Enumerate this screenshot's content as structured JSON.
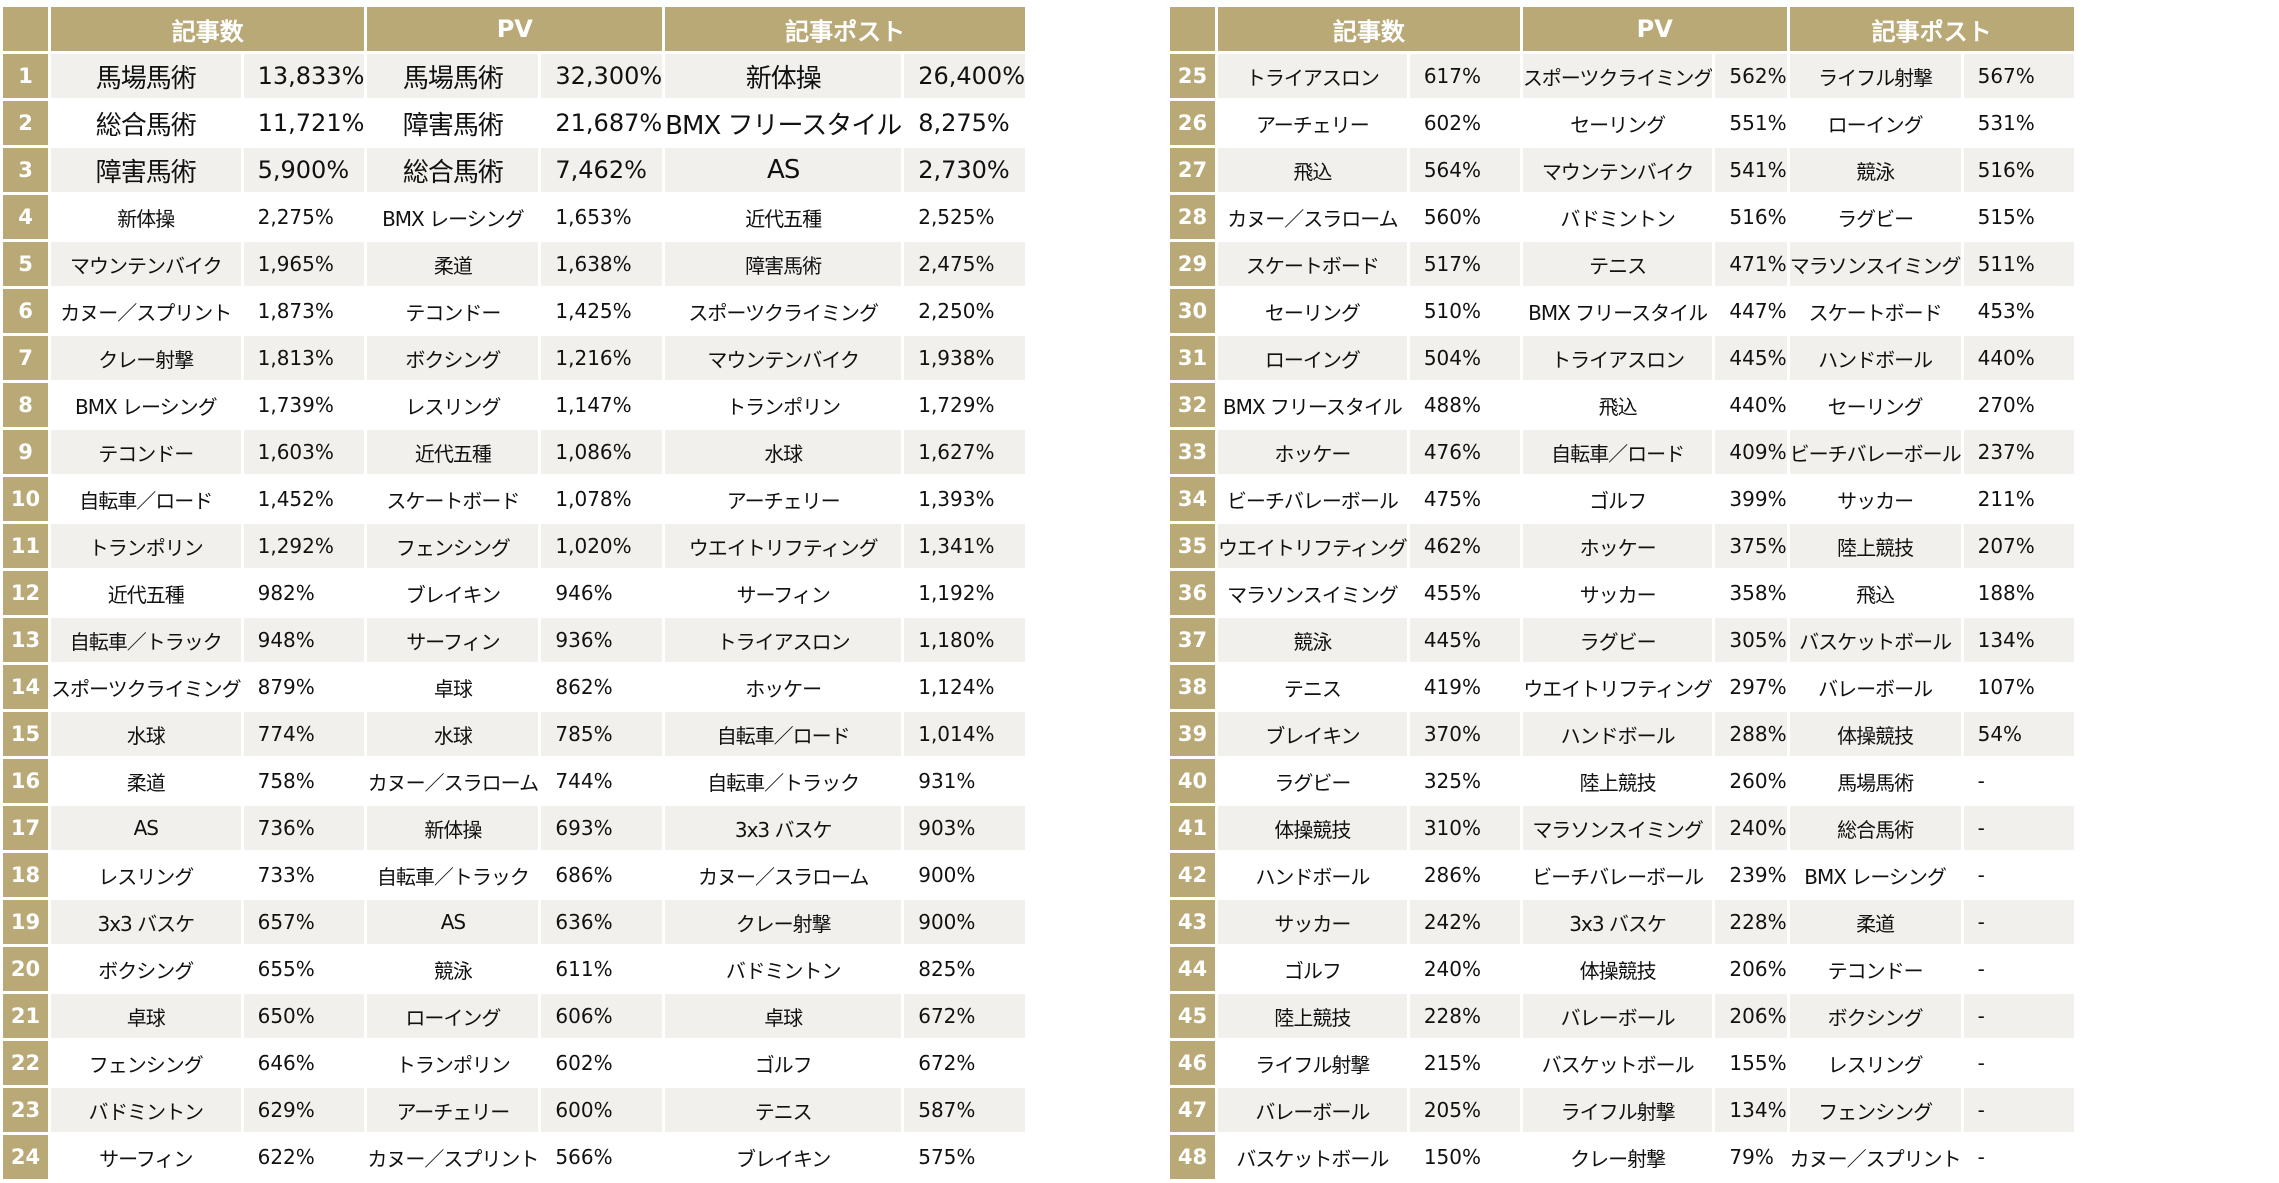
{
  "headers": [
    "記事数",
    "PV",
    "記事ポスト"
  ],
  "rows": [
    {
      "rank": "1",
      "articles": [
        "馬場馬術",
        "13,833%"
      ],
      "pv": [
        "馬場馬術",
        "32,300%"
      ],
      "posts": [
        "新体操",
        "26,400%"
      ]
    },
    {
      "rank": "2",
      "articles": [
        "総合馬術",
        "11,721%"
      ],
      "pv": [
        "障害馬術",
        "21,687%"
      ],
      "posts": [
        "BMX フリースタイル",
        "8,275%"
      ]
    },
    {
      "rank": "3",
      "articles": [
        "障害馬術",
        "5,900%"
      ],
      "pv": [
        "総合馬術",
        "7,462%"
      ],
      "posts": [
        "AS",
        "2,730%"
      ]
    },
    {
      "rank": "4",
      "articles": [
        "新体操",
        "2,275%"
      ],
      "pv": [
        "BMX レーシング",
        "1,653%"
      ],
      "posts": [
        "近代五種",
        "2,525%"
      ]
    },
    {
      "rank": "5",
      "articles": [
        "マウンテンバイク",
        "1,965%"
      ],
      "pv": [
        "柔道",
        "1,638%"
      ],
      "posts": [
        "障害馬術",
        "2,475%"
      ]
    },
    {
      "rank": "6",
      "articles": [
        "カヌー／スプリント",
        "1,873%"
      ],
      "pv": [
        "テコンドー",
        "1,425%"
      ],
      "posts": [
        "スポーツクライミング",
        "2,250%"
      ]
    },
    {
      "rank": "7",
      "articles": [
        "クレー射撃",
        "1,813%"
      ],
      "pv": [
        "ボクシング",
        "1,216%"
      ],
      "posts": [
        "マウンテンバイク",
        "1,938%"
      ]
    },
    {
      "rank": "8",
      "articles": [
        "BMX レーシング",
        "1,739%"
      ],
      "pv": [
        "レスリング",
        "1,147%"
      ],
      "posts": [
        "トランポリン",
        "1,729%"
      ]
    },
    {
      "rank": "9",
      "articles": [
        "テコンドー",
        "1,603%"
      ],
      "pv": [
        "近代五種",
        "1,086%"
      ],
      "posts": [
        "水球",
        "1,627%"
      ]
    },
    {
      "rank": "10",
      "articles": [
        "自転車／ロード",
        "1,452%"
      ],
      "pv": [
        "スケートボード",
        "1,078%"
      ],
      "posts": [
        "アーチェリー",
        "1,393%"
      ]
    },
    {
      "rank": "11",
      "articles": [
        "トランポリン",
        "1,292%"
      ],
      "pv": [
        "フェンシング",
        "1,020%"
      ],
      "posts": [
        "ウエイトリフティング",
        "1,341%"
      ]
    },
    {
      "rank": "12",
      "articles": [
        "近代五種",
        "982%"
      ],
      "pv": [
        "ブレイキン",
        "946%"
      ],
      "posts": [
        "サーフィン",
        "1,192%"
      ]
    },
    {
      "rank": "13",
      "articles": [
        "自転車／トラック",
        "948%"
      ],
      "pv": [
        "サーフィン",
        "936%"
      ],
      "posts": [
        "トライアスロン",
        "1,180%"
      ]
    },
    {
      "rank": "14",
      "articles": [
        "スポーツクライミング",
        "879%"
      ],
      "pv": [
        "卓球",
        "862%"
      ],
      "posts": [
        "ホッケー",
        "1,124%"
      ]
    },
    {
      "rank": "15",
      "articles": [
        "水球",
        "774%"
      ],
      "pv": [
        "水球",
        "785%"
      ],
      "posts": [
        "自転車／ロード",
        "1,014%"
      ]
    },
    {
      "rank": "16",
      "articles": [
        "柔道",
        "758%"
      ],
      "pv": [
        "カヌー／スラローム",
        "744%"
      ],
      "posts": [
        "自転車／トラック",
        "931%"
      ]
    },
    {
      "rank": "17",
      "articles": [
        "AS",
        "736%"
      ],
      "pv": [
        "新体操",
        "693%"
      ],
      "posts": [
        "3x3 バスケ",
        "903%"
      ]
    },
    {
      "rank": "18",
      "articles": [
        "レスリング",
        "733%"
      ],
      "pv": [
        "自転車／トラック",
        "686%"
      ],
      "posts": [
        "カヌー／スラローム",
        "900%"
      ]
    },
    {
      "rank": "19",
      "articles": [
        "3x3 バスケ",
        "657%"
      ],
      "pv": [
        "AS",
        "636%"
      ],
      "posts": [
        "クレー射撃",
        "900%"
      ]
    },
    {
      "rank": "20",
      "articles": [
        "ボクシング",
        "655%"
      ],
      "pv": [
        "競泳",
        "611%"
      ],
      "posts": [
        "バドミントン",
        "825%"
      ]
    },
    {
      "rank": "21",
      "articles": [
        "卓球",
        "650%"
      ],
      "pv": [
        "ローイング",
        "606%"
      ],
      "posts": [
        "卓球",
        "672%"
      ]
    },
    {
      "rank": "22",
      "articles": [
        "フェンシング",
        "646%"
      ],
      "pv": [
        "トランポリン",
        "602%"
      ],
      "posts": [
        "ゴルフ",
        "672%"
      ]
    },
    {
      "rank": "23",
      "articles": [
        "バドミントン",
        "629%"
      ],
      "pv": [
        "アーチェリー",
        "600%"
      ],
      "posts": [
        "テニス",
        "587%"
      ]
    },
    {
      "rank": "24",
      "articles": [
        "サーフィン",
        "622%"
      ],
      "pv": [
        "カヌー／スプリント",
        "566%"
      ],
      "posts": [
        "ブレイキン",
        "575%"
      ]
    },
    {
      "rank": "25",
      "articles": [
        "トライアスロン",
        "617%"
      ],
      "pv": [
        "スポーツクライミング",
        "562%"
      ],
      "posts": [
        "ライフル射撃",
        "567%"
      ]
    },
    {
      "rank": "26",
      "articles": [
        "アーチェリー",
        "602%"
      ],
      "pv": [
        "セーリング",
        "551%"
      ],
      "posts": [
        "ローイング",
        "531%"
      ]
    },
    {
      "rank": "27",
      "articles": [
        "飛込",
        "564%"
      ],
      "pv": [
        "マウンテンバイク",
        "541%"
      ],
      "posts": [
        "競泳",
        "516%"
      ]
    },
    {
      "rank": "28",
      "articles": [
        "カヌー／スラローム",
        "560%"
      ],
      "pv": [
        "バドミントン",
        "516%"
      ],
      "posts": [
        "ラグビー",
        "515%"
      ]
    },
    {
      "rank": "29",
      "articles": [
        "スケートボード",
        "517%"
      ],
      "pv": [
        "テニス",
        "471%"
      ],
      "posts": [
        "マラソンスイミング",
        "511%"
      ]
    },
    {
      "rank": "30",
      "articles": [
        "セーリング",
        "510%"
      ],
      "pv": [
        "BMX フリースタイル",
        "447%"
      ],
      "posts": [
        "スケートボード",
        "453%"
      ]
    },
    {
      "rank": "31",
      "articles": [
        "ローイング",
        "504%"
      ],
      "pv": [
        "トライアスロン",
        "445%"
      ],
      "posts": [
        "ハンドボール",
        "440%"
      ]
    },
    {
      "rank": "32",
      "articles": [
        "BMX フリースタイル",
        "488%"
      ],
      "pv": [
        "飛込",
        "440%"
      ],
      "posts": [
        "セーリング",
        "270%"
      ]
    },
    {
      "rank": "33",
      "articles": [
        "ホッケー",
        "476%"
      ],
      "pv": [
        "自転車／ロード",
        "409%"
      ],
      "posts": [
        "ビーチバレーボール",
        "237%"
      ]
    },
    {
      "rank": "34",
      "articles": [
        "ビーチバレーボール",
        "475%"
      ],
      "pv": [
        "ゴルフ",
        "399%"
      ],
      "posts": [
        "サッカー",
        "211%"
      ]
    },
    {
      "rank": "35",
      "articles": [
        "ウエイトリフティング",
        "462%"
      ],
      "pv": [
        "ホッケー",
        "375%"
      ],
      "posts": [
        "陸上競技",
        "207%"
      ]
    },
    {
      "rank": "36",
      "articles": [
        "マラソンスイミング",
        "455%"
      ],
      "pv": [
        "サッカー",
        "358%"
      ],
      "posts": [
        "飛込",
        "188%"
      ]
    },
    {
      "rank": "37",
      "articles": [
        "競泳",
        "445%"
      ],
      "pv": [
        "ラグビー",
        "305%"
      ],
      "posts": [
        "バスケットボール",
        "134%"
      ]
    },
    {
      "rank": "38",
      "articles": [
        "テニス",
        "419%"
      ],
      "pv": [
        "ウエイトリフティング",
        "297%"
      ],
      "posts": [
        "バレーボール",
        "107%"
      ]
    },
    {
      "rank": "39",
      "articles": [
        "ブレイキン",
        "370%"
      ],
      "pv": [
        "ハンドボール",
        "288%"
      ],
      "posts": [
        "体操競技",
        "54%"
      ]
    },
    {
      "rank": "40",
      "articles": [
        "ラグビー",
        "325%"
      ],
      "pv": [
        "陸上競技",
        "260%"
      ],
      "posts": [
        "馬場馬術",
        "-"
      ]
    },
    {
      "rank": "41",
      "articles": [
        "体操競技",
        "310%"
      ],
      "pv": [
        "マラソンスイミング",
        "240%"
      ],
      "posts": [
        "総合馬術",
        "-"
      ]
    },
    {
      "rank": "42",
      "articles": [
        "ハンドボール",
        "286%"
      ],
      "pv": [
        "ビーチバレーボール",
        "239%"
      ],
      "posts": [
        "BMX レーシング",
        "-"
      ]
    },
    {
      "rank": "43",
      "articles": [
        "サッカー",
        "242%"
      ],
      "pv": [
        "3x3 バスケ",
        "228%"
      ],
      "posts": [
        "柔道",
        "-"
      ]
    },
    {
      "rank": "44",
      "articles": [
        "ゴルフ",
        "240%"
      ],
      "pv": [
        "体操競技",
        "206%"
      ],
      "posts": [
        "テコンドー",
        "-"
      ]
    },
    {
      "rank": "45",
      "articles": [
        "陸上競技",
        "228%"
      ],
      "pv": [
        "バレーボール",
        "206%"
      ],
      "posts": [
        "ボクシング",
        "-"
      ]
    },
    {
      "rank": "46",
      "articles": [
        "ライフル射撃",
        "215%"
      ],
      "pv": [
        "バスケットボール",
        "155%"
      ],
      "posts": [
        "レスリング",
        "-"
      ]
    },
    {
      "rank": "47",
      "articles": [
        "バレーボール",
        "205%"
      ],
      "pv": [
        "ライフル射撃",
        "134%"
      ],
      "posts": [
        "フェンシング",
        "-"
      ]
    },
    {
      "rank": "48",
      "articles": [
        "バスケットボール",
        "150%"
      ],
      "pv": [
        "クレー射撃",
        "79%"
      ],
      "posts": [
        "カヌー／スプリント",
        "-"
      ]
    }
  ]
}
